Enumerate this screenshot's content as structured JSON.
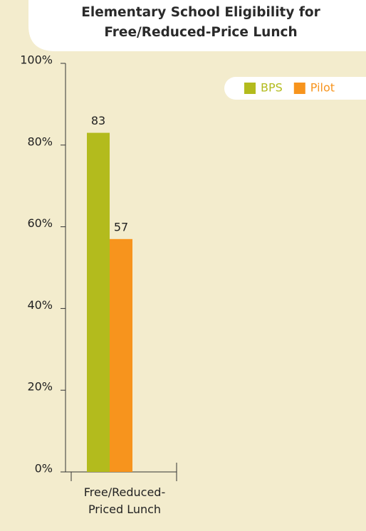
{
  "chart_data": {
    "type": "bar",
    "title_lines": [
      "Elementary School Eligibility for",
      "Free/Reduced-Price Lunch"
    ],
    "categories": [
      "Free/Reduced-Priced Lunch"
    ],
    "series": [
      {
        "name": "BPS",
        "color": "#b3bb1d",
        "values": [
          83
        ]
      },
      {
        "name": "Pilot",
        "color": "#f7941d",
        "values": [
          57
        ]
      }
    ],
    "ylim": [
      0,
      100
    ],
    "yticks": [
      {
        "value": 0,
        "label": "0%"
      },
      {
        "value": 20,
        "label": "20%"
      },
      {
        "value": 40,
        "label": "40%"
      },
      {
        "value": 60,
        "label": "60%"
      },
      {
        "value": 80,
        "label": "80%"
      },
      {
        "value": 100,
        "label": "100%"
      }
    ],
    "legend": "top-right"
  }
}
